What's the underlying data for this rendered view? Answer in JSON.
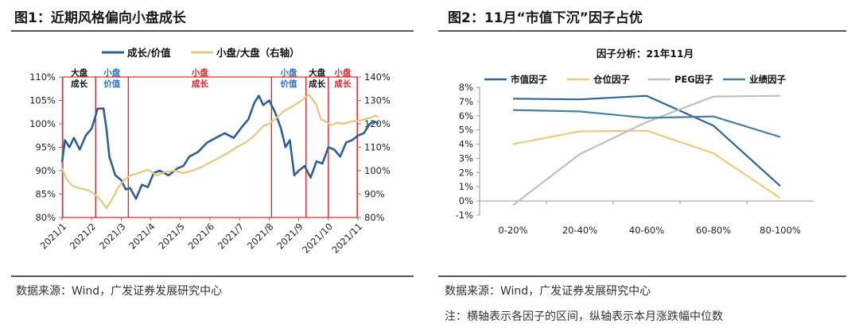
{
  "left": {
    "title": "图1：近期风格偏向小盘成长",
    "source": "数据来源：Wind，广发证券发展研究中心",
    "colors": {
      "growth": "#2e5f94",
      "ratio": "#e3c77a",
      "region": "#e8212a",
      "black_label": "#111111",
      "blue_label": "#2e6fd0",
      "red_label": "#e8212a"
    },
    "regions": [
      {
        "line1": "大盘",
        "line2": "成长",
        "color": "black"
      },
      {
        "line1": "小盘",
        "line2": "价值",
        "color": "blue"
      },
      {
        "line1": "小盘",
        "line2": "成长",
        "color": "red"
      },
      {
        "line1": "小盘",
        "line2": "价值",
        "color": "blue"
      },
      {
        "line1": "大盘",
        "line2": "成长",
        "color": "black"
      },
      {
        "line1": "小盘",
        "line2": "成长",
        "color": "red"
      }
    ]
  },
  "right": {
    "title": "图2：11月“市值下沉”因子占优",
    "source": "数据来源：Wind，广发证券发展研究中心",
    "note": "注：横轴表示各因子的区间，纵轴表示本月涨跌幅中位数",
    "colors": {
      "market_cap": "#2e6496",
      "position": "#e6cd7e",
      "peg": "#bfbfbf",
      "earnings": "#4a7ea3"
    }
  },
  "chart_data": [
    {
      "type": "line",
      "title": "",
      "legend": [
        "成长/价值",
        "小盘/大盘（右轴）"
      ],
      "legend_position": "top",
      "x_tick_labels": [
        "2021/1",
        "2021/2",
        "2021/3",
        "2021/4",
        "2021/5",
        "2021/6",
        "2021/7",
        "2021/8",
        "2021/9",
        "2021/10",
        "2021/11"
      ],
      "y_left": {
        "ticks": [
          "80%",
          "85%",
          "90%",
          "95%",
          "100%",
          "105%",
          "110%"
        ],
        "lim": [
          80,
          110
        ]
      },
      "y_right": {
        "ticks": [
          "80%",
          "90%",
          "100%",
          "110%",
          "120%",
          "130%",
          "140%"
        ],
        "lim": [
          80,
          140
        ]
      },
      "region_boundaries": [
        "2021/2",
        "2021/3",
        "2021/8",
        "2021/9",
        "2021/10"
      ],
      "series": [
        {
          "name": "成长/价值",
          "axis": "left",
          "points": [
            [
              0.0,
              91.8
            ],
            [
              0.1,
              96.5
            ],
            [
              0.25,
              95.0
            ],
            [
              0.4,
              97.0
            ],
            [
              0.6,
              94.5
            ],
            [
              0.8,
              97.5
            ],
            [
              1.0,
              99.0
            ],
            [
              1.1,
              101.0
            ],
            [
              1.2,
              103.2
            ],
            [
              1.4,
              103.3
            ],
            [
              1.5,
              99.0
            ],
            [
              1.6,
              93.0
            ],
            [
              1.8,
              89.0
            ],
            [
              2.0,
              88.0
            ],
            [
              2.15,
              86.0
            ],
            [
              2.3,
              86.3
            ],
            [
              2.5,
              84.0
            ],
            [
              2.7,
              87.0
            ],
            [
              2.9,
              86.5
            ],
            [
              3.1,
              89.5
            ],
            [
              3.3,
              90.0
            ],
            [
              3.6,
              89.0
            ],
            [
              3.9,
              90.5
            ],
            [
              4.1,
              91.0
            ],
            [
              4.3,
              93.0
            ],
            [
              4.6,
              94.0
            ],
            [
              4.9,
              96.0
            ],
            [
              5.2,
              97.0
            ],
            [
              5.5,
              98.0
            ],
            [
              5.8,
              97.0
            ],
            [
              6.1,
              99.5
            ],
            [
              6.3,
              101.0
            ],
            [
              6.5,
              104.5
            ],
            [
              6.65,
              106.0
            ],
            [
              6.8,
              104.0
            ],
            [
              7.0,
              105.0
            ],
            [
              7.2,
              102.5
            ],
            [
              7.4,
              99.0
            ],
            [
              7.55,
              95.0
            ],
            [
              7.7,
              96.5
            ],
            [
              7.85,
              89.0
            ],
            [
              8.0,
              90.0
            ],
            [
              8.2,
              91.0
            ],
            [
              8.4,
              88.5
            ],
            [
              8.6,
              92.0
            ],
            [
              8.8,
              91.5
            ],
            [
              9.0,
              95.0
            ],
            [
              9.2,
              94.5
            ],
            [
              9.4,
              93.0
            ],
            [
              9.6,
              96.0
            ],
            [
              9.8,
              96.5
            ],
            [
              10.0,
              97.5
            ],
            [
              10.2,
              98.0
            ],
            [
              10.4,
              100.0
            ],
            [
              10.55,
              100.5
            ],
            [
              10.7,
              100.0
            ]
          ]
        },
        {
          "name": "小盘/大盘（右轴）",
          "axis": "right",
          "points": [
            [
              0.0,
              101.0
            ],
            [
              0.15,
              96.5
            ],
            [
              0.35,
              93.5
            ],
            [
              0.6,
              92.5
            ],
            [
              0.9,
              91.5
            ],
            [
              1.1,
              90.0
            ],
            [
              1.3,
              87.5
            ],
            [
              1.5,
              84.0
            ],
            [
              1.7,
              88.0
            ],
            [
              1.9,
              93.0
            ],
            [
              2.1,
              96.0
            ],
            [
              2.3,
              98.0
            ],
            [
              2.6,
              99.0
            ],
            [
              2.9,
              100.5
            ],
            [
              3.2,
              98.0
            ],
            [
              3.5,
              99.5
            ],
            [
              3.8,
              100.0
            ],
            [
              4.1,
              99.0
            ],
            [
              4.4,
              100.0
            ],
            [
              4.7,
              101.5
            ],
            [
              5.0,
              103.5
            ],
            [
              5.3,
              105.5
            ],
            [
              5.6,
              107.5
            ],
            [
              5.9,
              110.0
            ],
            [
              6.2,
              112.0
            ],
            [
              6.5,
              115.0
            ],
            [
              6.8,
              119.0
            ],
            [
              7.0,
              120.0
            ],
            [
              7.2,
              122.0
            ],
            [
              7.5,
              125.5
            ],
            [
              7.8,
              127.5
            ],
            [
              8.1,
              130.0
            ],
            [
              8.35,
              132.5
            ],
            [
              8.6,
              128.0
            ],
            [
              8.75,
              122.0
            ],
            [
              8.9,
              121.0
            ],
            [
              9.1,
              119.5
            ],
            [
              9.3,
              120.5
            ],
            [
              9.5,
              120.0
            ],
            [
              9.8,
              121.0
            ],
            [
              10.1,
              121.5
            ],
            [
              10.4,
              122.5
            ],
            [
              10.6,
              123.5
            ],
            [
              10.7,
              123.0
            ]
          ]
        }
      ]
    },
    {
      "type": "line",
      "title": "因子分析：21年11月",
      "legend": [
        "市值因子",
        "仓位因子",
        "PEG因子",
        "业绩因子"
      ],
      "legend_position": "top",
      "categories": [
        "0-20%",
        "20-40%",
        "40-60%",
        "60-80%",
        "80-100%"
      ],
      "y_ticks": [
        "-1%",
        "0%",
        "1%",
        "2%",
        "3%",
        "4%",
        "5%",
        "6%",
        "7%",
        "8%"
      ],
      "ylim": [
        -1,
        8
      ],
      "series": [
        {
          "name": "市值因子",
          "values": [
            7.2,
            7.15,
            7.4,
            5.3,
            1.05
          ]
        },
        {
          "name": "仓位因子",
          "values": [
            4.0,
            4.9,
            4.95,
            3.35,
            0.2
          ]
        },
        {
          "name": "PEG因子",
          "values": [
            -0.3,
            3.3,
            5.55,
            7.35,
            7.4
          ]
        },
        {
          "name": "业绩因子",
          "values": [
            6.4,
            6.3,
            5.85,
            5.95,
            4.5
          ]
        }
      ]
    }
  ]
}
